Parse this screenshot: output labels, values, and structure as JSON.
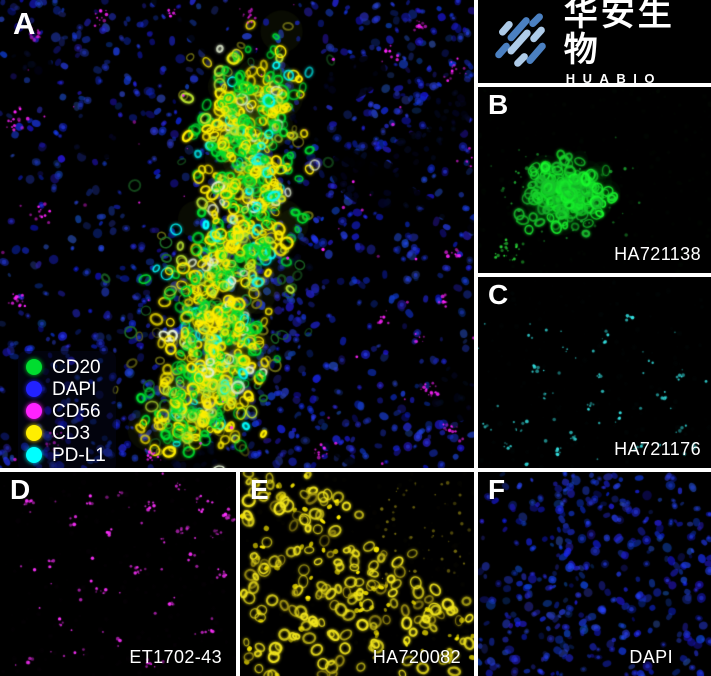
{
  "logo": {
    "brand_cn": "华安生物",
    "brand_en": "HUABIO",
    "bar_light": "#aecbe8",
    "bar_dark": "#4b80c1"
  },
  "panels": {
    "a": {
      "label": "A",
      "legend": [
        {
          "name": "CD20",
          "color": "#00dd2f"
        },
        {
          "name": "DAPI",
          "color": "#2222ff"
        },
        {
          "name": "CD56",
          "color": "#ff22ff"
        },
        {
          "name": "CD3",
          "color": "#ffee00"
        },
        {
          "name": "PD-L1",
          "color": "#00ffff"
        }
      ]
    },
    "b": {
      "label": "B",
      "code": "HA721138",
      "stain": "#2ce63c"
    },
    "c": {
      "label": "C",
      "code": "HA721176",
      "stain": "#35e6e6"
    },
    "d": {
      "label": "D",
      "code": "ET1702-43",
      "stain": "#ff30ff"
    },
    "e": {
      "label": "E",
      "code": "HA720082",
      "stain": "#f0e41e"
    },
    "f": {
      "label": "F",
      "code": "DAPI",
      "stain": "#2635ff"
    }
  }
}
